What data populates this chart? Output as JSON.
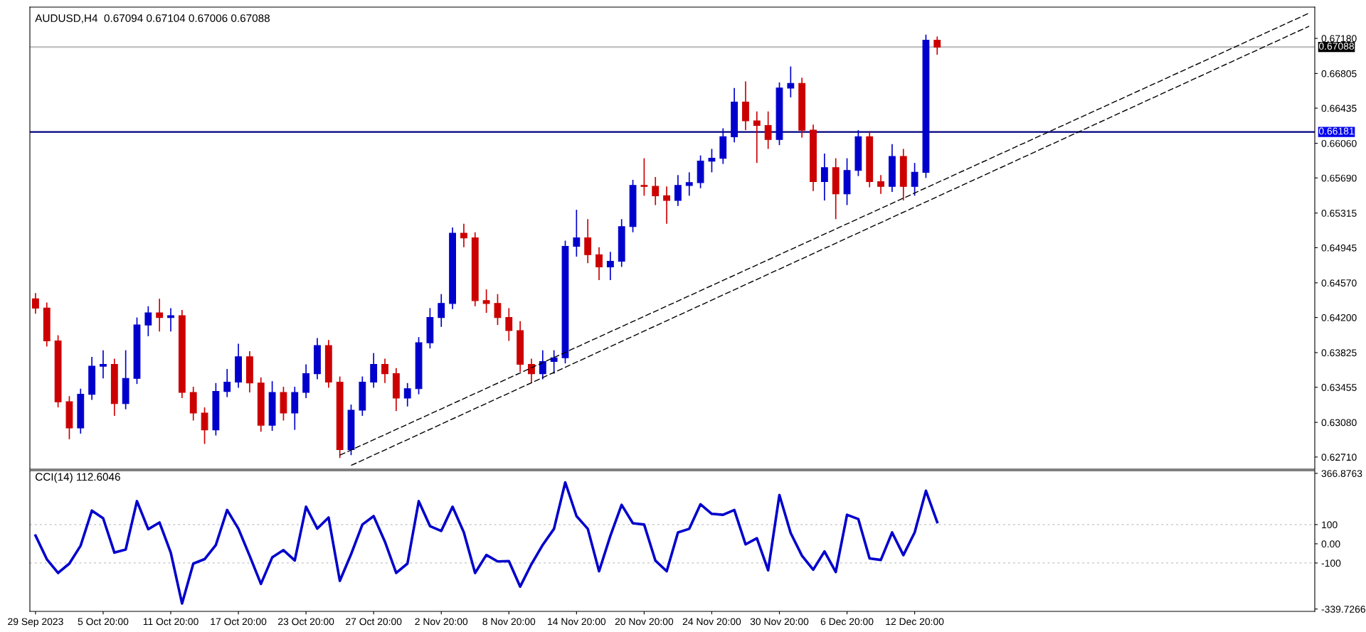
{
  "chart_data": [
    {
      "type": "candlestick",
      "title": "AUDUSD,H4  0.67094 0.67104 0.67006 0.67088",
      "ylim": [
        0.6258,
        0.67514
      ],
      "tick_labels": "y",
      "grid": false,
      "categories": [
        null,
        null,
        null,
        null,
        null,
        null,
        null,
        null,
        null,
        null,
        null,
        null,
        null,
        null,
        null,
        null,
        null,
        null,
        null,
        null,
        null,
        null,
        null,
        null,
        null,
        null,
        null,
        null,
        null,
        null,
        null,
        null,
        null,
        null,
        null,
        null,
        null,
        null,
        null,
        null,
        null,
        null,
        null,
        null,
        null,
        null,
        null,
        null,
        null,
        null,
        null,
        null,
        null,
        null,
        null,
        null,
        null,
        null,
        null,
        null,
        null,
        null,
        null,
        null,
        null,
        null,
        null,
        null,
        null,
        null,
        null,
        null,
        null,
        null,
        null,
        null,
        null,
        null,
        null,
        null,
        null,
        null,
        null,
        null,
        null,
        null,
        null,
        null,
        null,
        null,
        null,
        null,
        null,
        null,
        null,
        null,
        null,
        null,
        null,
        null,
        null,
        null,
        null,
        null,
        null,
        null,
        null,
        null,
        null,
        null,
        null,
        null,
        null,
        null
      ],
      "yticks": [
        {
          "value": 0.6271,
          "label": "0.62710"
        },
        {
          "value": 0.6308,
          "label": "0.63080"
        },
        {
          "value": 0.63455,
          "label": "0.63455"
        },
        {
          "value": 0.63825,
          "label": "0.63825"
        },
        {
          "value": 0.642,
          "label": "0.64200"
        },
        {
          "value": 0.6457,
          "label": "0.64570"
        },
        {
          "value": 0.64945,
          "label": "0.64945"
        },
        {
          "value": 0.65315,
          "label": "0.65315"
        },
        {
          "value": 0.6569,
          "label": "0.65690"
        },
        {
          "value": 0.6606,
          "label": "0.66060"
        },
        {
          "value": 0.66435,
          "label": "0.66435"
        },
        {
          "value": 0.66805,
          "label": "0.66805"
        },
        {
          "value": 0.6718,
          "label": "0.67180"
        }
      ],
      "ref_lines": [
        {
          "axis": "y",
          "value": 0.66181,
          "label": "0.66181",
          "color": "#000080",
          "line_style": "solid"
        },
        {
          "axis": "y",
          "value": 0.67088,
          "label": "0.67088",
          "color": "#c0c0c0",
          "line_style": "solid"
        }
      ],
      "series": [
        {
          "colors": [
            "#cc0000",
            "#cc0000",
            "#cc0000",
            "#cc0000",
            "#0000cc",
            "#0000cc",
            "#0000cc",
            "#cc0000",
            "#0000cc",
            "#0000cc",
            "#0000cc",
            "#cc0000",
            "#0000cc",
            "#cc0000",
            "#cc0000",
            "#cc0000",
            "#0000cc",
            "#0000cc",
            "#0000cc",
            "#cc0000",
            "#cc0000",
            "#0000cc",
            "#cc0000",
            "#0000cc",
            "#0000cc",
            "#0000cc",
            "#cc0000",
            "#cc0000",
            "#0000cc",
            "#0000cc",
            "#0000cc",
            "#cc0000",
            "#cc0000",
            "#0000cc",
            "#0000cc",
            "#0000cc",
            "#0000cc",
            "#0000cc",
            "#cc0000",
            "#cc0000",
            "#cc0000",
            "#cc0000",
            "#cc0000",
            "#cc0000",
            "#cc0000",
            "#0000cc",
            "#0000cc",
            "#0000cc",
            "#0000cc",
            "#cc0000",
            "#cc0000",
            "#0000cc",
            "#0000cc",
            "#0000cc",
            "#cc0000",
            "#cc0000",
            "#cc0000",
            "#0000cc",
            "#0000cc",
            "#0000cc",
            "#0000cc",
            "#0000cc",
            "#0000cc",
            "#cc0000",
            "#cc0000",
            "#cc0000",
            "#0000cc",
            "#0000cc",
            "#cc0000",
            "#cc0000",
            "#0000cc",
            "#cc0000",
            "#0000cc",
            "#0000cc",
            "#cc0000",
            "#cc0000",
            "#0000cc",
            "#cc0000",
            "#0000cc",
            "#0000cc",
            "#cc0000",
            null,
            null,
            null,
            null,
            null,
            null,
            null,
            null,
            null,
            null,
            null,
            null,
            null,
            null,
            null,
            null,
            null,
            null,
            null,
            null,
            null,
            null,
            null,
            null,
            null,
            null,
            null,
            null,
            null,
            null,
            null,
            null,
            null
          ],
          "ohlc": [
            [
              0.644,
              0.6446,
              0.6424,
              0.643
            ],
            [
              0.643,
              0.6436,
              0.6389,
              0.6395
            ],
            [
              0.6395,
              0.6401,
              0.6324,
              0.633
            ],
            [
              0.633,
              0.6336,
              0.629,
              0.6302
            ],
            [
              0.6302,
              0.6344,
              0.6296,
              0.6338
            ],
            [
              0.6338,
              0.6378,
              0.6332,
              0.6368
            ],
            [
              0.6368,
              0.6385,
              0.6355,
              0.637
            ],
            [
              0.637,
              0.6376,
              0.6315,
              0.6328
            ],
            [
              0.6328,
              0.6385,
              0.6322,
              0.6355
            ],
            [
              0.6355,
              0.642,
              0.6349,
              0.6412
            ],
            [
              0.6412,
              0.6432,
              0.64,
              0.6425
            ],
            [
              0.6425,
              0.644,
              0.6405,
              0.642
            ],
            [
              0.642,
              0.643,
              0.6405,
              0.6422
            ],
            [
              0.6422,
              0.6428,
              0.6334,
              0.634
            ],
            [
              0.634,
              0.6346,
              0.631,
              0.6318
            ],
            [
              0.6318,
              0.6324,
              0.6285,
              0.63
            ],
            [
              0.63,
              0.635,
              0.6294,
              0.6341
            ],
            [
              0.6341,
              0.6365,
              0.6335,
              0.6351
            ],
            [
              0.6351,
              0.6392,
              0.6345,
              0.6378
            ],
            [
              0.6378,
              0.6384,
              0.634,
              0.635
            ],
            [
              0.635,
              0.6356,
              0.6298,
              0.6305
            ],
            [
              0.6305,
              0.6352,
              0.6299,
              0.634
            ],
            [
              0.634,
              0.6346,
              0.631,
              0.6318
            ],
            [
              0.6318,
              0.6346,
              0.63,
              0.634
            ],
            [
              0.634,
              0.637,
              0.6334,
              0.636
            ],
            [
              0.636,
              0.6398,
              0.6354,
              0.639
            ],
            [
              0.639,
              0.6396,
              0.6345,
              0.6351
            ],
            [
              0.6351,
              0.6357,
              0.627,
              0.6279
            ],
            [
              0.6279,
              0.6327,
              0.6273,
              0.6321
            ],
            [
              0.6321,
              0.6357,
              0.6315,
              0.6351
            ],
            [
              0.6351,
              0.6382,
              0.6345,
              0.637
            ],
            [
              0.637,
              0.6376,
              0.635,
              0.636
            ],
            [
              0.636,
              0.6366,
              0.632,
              0.6334
            ],
            [
              0.6334,
              0.635,
              0.6325,
              0.6344
            ],
            [
              0.6344,
              0.6399,
              0.6338,
              0.6393
            ],
            [
              0.6393,
              0.643,
              0.6387,
              0.642
            ],
            [
              0.642,
              0.6445,
              0.641,
              0.6435
            ],
            [
              0.6435,
              0.6516,
              0.6429,
              0.651
            ],
            [
              0.651,
              0.652,
              0.6495,
              0.6505
            ],
            [
              0.6505,
              0.6511,
              0.6432,
              0.6438
            ],
            [
              0.6438,
              0.645,
              0.6425,
              0.6435
            ],
            [
              0.6435,
              0.6445,
              0.6412,
              0.642
            ],
            [
              0.642,
              0.643,
              0.6395,
              0.6406
            ],
            [
              0.6406,
              0.6416,
              0.6362,
              0.637
            ],
            [
              0.637,
              0.6376,
              0.635,
              0.636
            ],
            [
              0.636,
              0.6385,
              0.6354,
              0.6373
            ],
            [
              0.6373,
              0.6385,
              0.636,
              0.6377
            ],
            [
              0.6377,
              0.6502,
              0.6371,
              0.6496
            ],
            [
              0.6496,
              0.6535,
              0.6485,
              0.6505
            ],
            [
              0.6505,
              0.6525,
              0.6478,
              0.6487
            ],
            [
              0.6487,
              0.6495,
              0.646,
              0.6474
            ],
            [
              0.6474,
              0.649,
              0.646,
              0.648
            ],
            [
              0.648,
              0.6525,
              0.6474,
              0.6517
            ],
            [
              0.6517,
              0.6567,
              0.6511,
              0.6561
            ],
            [
              0.6561,
              0.659,
              0.655,
              0.656
            ],
            [
              0.656,
              0.657,
              0.654,
              0.655
            ],
            [
              0.655,
              0.656,
              0.652,
              0.6545
            ],
            [
              0.6545,
              0.6572,
              0.6539,
              0.6561
            ],
            [
              0.6561,
              0.6575,
              0.655,
              0.6564
            ],
            [
              0.6564,
              0.6593,
              0.6558,
              0.6587
            ],
            [
              0.6587,
              0.66,
              0.6575,
              0.659
            ],
            [
              0.659,
              0.6622,
              0.6584,
              0.6613
            ],
            [
              0.6613,
              0.6665,
              0.6607,
              0.665
            ],
            [
              0.665,
              0.6672,
              0.662,
              0.663
            ],
            [
              0.663,
              0.664,
              0.6585,
              0.6625
            ],
            [
              0.6625,
              0.664,
              0.66,
              0.661
            ],
            [
              0.661,
              0.6671,
              0.6604,
              0.6665
            ],
            [
              0.6665,
              0.6688,
              0.6655,
              0.667
            ],
            [
              0.667,
              0.6676,
              0.6612,
              0.662
            ],
            [
              0.662,
              0.6626,
              0.6555,
              0.6565
            ],
            [
              0.6565,
              0.6595,
              0.6545,
              0.658
            ],
            [
              0.658,
              0.659,
              0.6525,
              0.6552
            ],
            [
              0.6552,
              0.659,
              0.654,
              0.6577
            ],
            [
              0.6577,
              0.662,
              0.6571,
              0.6613
            ],
            [
              0.6613,
              0.6619,
              0.6559,
              0.6565
            ],
            [
              0.6565,
              0.6572,
              0.6552,
              0.656
            ],
            [
              0.656,
              0.6605,
              0.6554,
              0.6592
            ],
            [
              0.6592,
              0.66,
              0.6545,
              0.656
            ],
            [
              0.656,
              0.6585,
              0.655,
              0.6575
            ],
            [
              0.6575,
              0.6722,
              0.6569,
              0.6716
            ],
            [
              0.6716,
              0.672,
              0.67006,
              0.67088
            ],
            null,
            null,
            null,
            null,
            null,
            null,
            null,
            null,
            null,
            null,
            null,
            null,
            null,
            null,
            null,
            null,
            null,
            null,
            null,
            null,
            null,
            null,
            null,
            null,
            null,
            null,
            null,
            null,
            null,
            null,
            null,
            null,
            null
          ]
        },
        {
          "type": "line",
          "color": "#000000",
          "line_style": "dashed",
          "values": [
            null,
            null,
            null,
            null,
            null,
            null,
            null,
            null,
            null,
            null,
            null,
            null,
            null,
            null,
            null,
            null,
            null,
            null,
            null,
            null,
            null,
            null,
            null,
            null,
            null,
            null,
            null,
            0.6273,
            null,
            null,
            null,
            null,
            null,
            null,
            null,
            null,
            null,
            null,
            null,
            null,
            null,
            null,
            null,
            null,
            null,
            null,
            null,
            null,
            null,
            null,
            null,
            null,
            null,
            null,
            null,
            null,
            null,
            null,
            null,
            null,
            null,
            null,
            null,
            null,
            null,
            null,
            null,
            null,
            null,
            null,
            null,
            null,
            null,
            null,
            null,
            null,
            null,
            null,
            null,
            null,
            null,
            null,
            null,
            null,
            null,
            null,
            null,
            null,
            null,
            null,
            null,
            null,
            null,
            null,
            null,
            null,
            null,
            null,
            null,
            null,
            null,
            null,
            null,
            null,
            null,
            null,
            null,
            null,
            null,
            null,
            null,
            null,
            null,
            0.6745
          ]
        },
        {
          "type": "line",
          "color": "#000000",
          "line_style": "dashed",
          "values": [
            null,
            null,
            null,
            null,
            null,
            null,
            null,
            null,
            null,
            null,
            null,
            null,
            null,
            null,
            null,
            null,
            null,
            null,
            null,
            null,
            null,
            null,
            null,
            null,
            null,
            null,
            null,
            null,
            0.6262,
            null,
            null,
            null,
            null,
            null,
            null,
            null,
            null,
            null,
            null,
            null,
            null,
            null,
            null,
            null,
            null,
            null,
            null,
            null,
            null,
            null,
            null,
            null,
            null,
            null,
            null,
            null,
            null,
            null,
            null,
            null,
            null,
            null,
            null,
            null,
            null,
            null,
            null,
            null,
            null,
            null,
            null,
            null,
            null,
            null,
            null,
            null,
            null,
            null,
            null,
            null,
            null,
            null,
            null,
            null,
            null,
            null,
            null,
            null,
            null,
            null,
            null,
            null,
            null,
            null,
            null,
            null,
            null,
            null,
            null,
            null,
            null,
            null,
            null,
            null,
            null,
            null,
            null,
            null,
            null,
            null,
            null,
            null,
            null,
            0.6731
          ]
        }
      ]
    },
    {
      "type": "line",
      "title": "CCI(14) 112.6046",
      "ylim": [
        -352,
        381
      ],
      "grid": false,
      "categories": [
        "29 Sep 2023",
        null,
        null,
        null,
        null,
        null,
        "5 Oct 20:00",
        null,
        null,
        null,
        null,
        null,
        "11 Oct 20:00",
        null,
        null,
        null,
        null,
        null,
        "17 Oct 20:00",
        null,
        null,
        null,
        null,
        null,
        "23 Oct 20:00",
        null,
        null,
        null,
        null,
        null,
        "27 Oct 20:00",
        null,
        null,
        null,
        null,
        null,
        "2 Nov 20:00",
        null,
        null,
        null,
        null,
        null,
        "8 Nov 20:00",
        null,
        null,
        null,
        null,
        null,
        "14 Nov 20:00",
        null,
        null,
        null,
        null,
        null,
        "20 Nov 20:00",
        null,
        null,
        null,
        null,
        null,
        "24 Nov 20:00",
        null,
        null,
        null,
        null,
        null,
        "30 Nov 20:00",
        null,
        null,
        null,
        null,
        null,
        "6 Dec 20:00",
        null,
        null,
        null,
        null,
        null,
        "12 Dec 20:00",
        null,
        null,
        null,
        null,
        null,
        null,
        null,
        null,
        null,
        null,
        null,
        null,
        null,
        null,
        null,
        null,
        null,
        null,
        null,
        null,
        null,
        null,
        null,
        null,
        null,
        null,
        null,
        null,
        null,
        null,
        null,
        null,
        null,
        null,
        null
      ],
      "yticks": [
        366.8763,
        100,
        {
          "value": 0,
          "label": "0.00"
        },
        -100,
        -339.7266
      ],
      "ref_lines": [
        {
          "axis": "y",
          "value": 100,
          "label": null,
          "color": "#c0c0c0",
          "line_style": "dotted"
        },
        {
          "axis": "y",
          "value": -100,
          "label": null,
          "color": "#c0c0c0",
          "line_style": "dotted"
        }
      ],
      "series": [
        {
          "color": "#0000cc",
          "line_style": "solid",
          "values": [
            43,
            -80,
            -152,
            -103,
            -10,
            173,
            133,
            -46,
            -30,
            222,
            76,
            111,
            -46,
            -311,
            -103,
            -80,
            -6,
            176,
            79,
            -63,
            -209,
            -71,
            -33,
            -87,
            193,
            79,
            137,
            -193,
            -54,
            100,
            144,
            11,
            -152,
            -103,
            222,
            92,
            67,
            193,
            60,
            -152,
            -58,
            -92,
            -90,
            -223,
            -106,
            -6,
            78,
            320,
            144,
            78,
            -143,
            41,
            203,
            107,
            100,
            -88,
            -143,
            59,
            78,
            206,
            156,
            151,
            176,
            -3,
            29,
            -138,
            254,
            56,
            -62,
            -135,
            -40,
            -147,
            151,
            129,
            -76,
            -84,
            59,
            -59,
            59,
            276,
            113,
            null,
            null,
            null,
            null,
            null,
            null,
            null,
            null,
            null,
            null,
            null,
            null,
            null,
            null,
            null,
            null,
            null,
            null,
            null,
            null,
            null,
            null,
            null,
            null,
            null,
            null,
            null,
            null,
            null,
            null,
            null,
            null,
            null
          ]
        }
      ]
    }
  ]
}
